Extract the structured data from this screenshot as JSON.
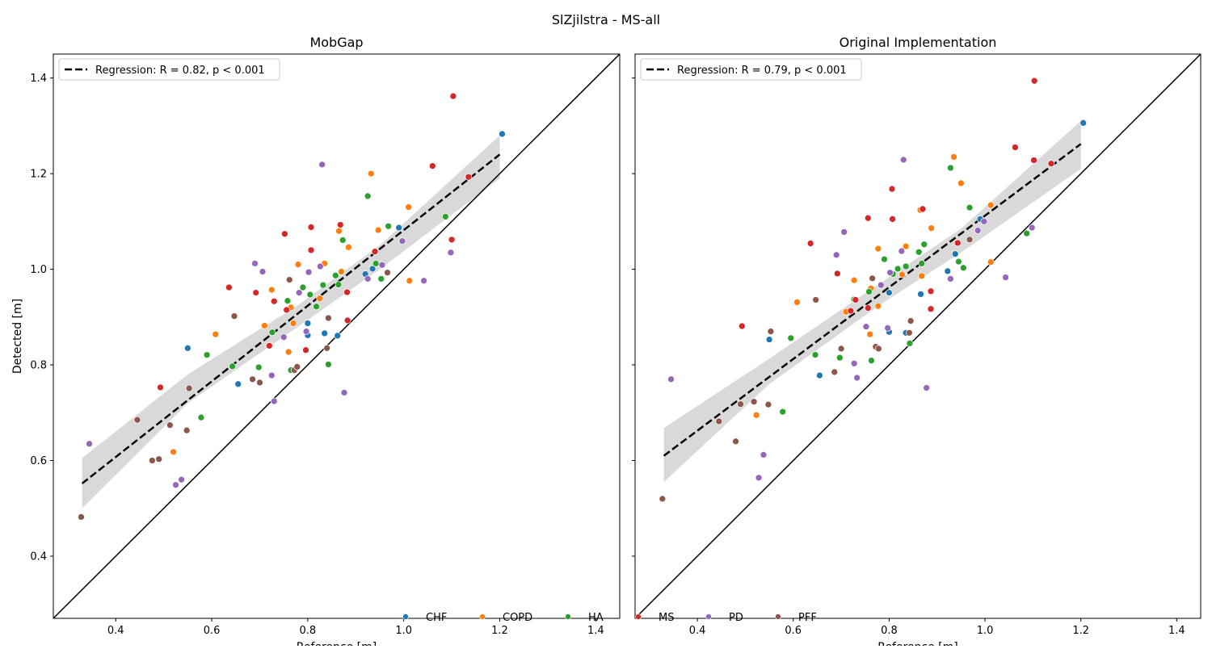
{
  "figure": {
    "title": "SlZjilstra - MS-all"
  },
  "colors": {
    "CHF": "#1f77b4",
    "COPD": "#ff7f0e",
    "HA": "#2ca02c",
    "MS": "#d62728",
    "PD": "#9467bd",
    "PFF": "#8c564b",
    "regression": "#000000",
    "ci_band": "#d9d9d9",
    "identity": "#000000"
  },
  "legend_bottom": {
    "entries": [
      {
        "label": "CHF",
        "group": "CHF"
      },
      {
        "label": "COPD",
        "group": "COPD"
      },
      {
        "label": "HA",
        "group": "HA"
      },
      {
        "label": "MS",
        "group": "MS"
      },
      {
        "label": "PD",
        "group": "PD"
      },
      {
        "label": "PFF",
        "group": "PFF"
      }
    ]
  },
  "chart_data": [
    {
      "type": "scatter",
      "title": "MobGap",
      "xlabel": "Reference [m]",
      "ylabel": "Detected [m]",
      "xlim": [
        0.27,
        1.45
      ],
      "ylim": [
        0.27,
        1.45
      ],
      "xticks": [
        0.4,
        0.6,
        0.8,
        1.0,
        1.2,
        1.4
      ],
      "xtick_labels": [
        "0.4",
        "0.6",
        "0.8",
        "1.0",
        "1.2",
        "1.4"
      ],
      "yticks": [
        0.4,
        0.6,
        0.8,
        1.0,
        1.2,
        1.4
      ],
      "ytick_labels": [
        "0.4",
        "0.6",
        "0.8",
        "1.0",
        "1.2",
        "1.4"
      ],
      "legend": "top-left",
      "regression_label": "Regression: R = 0.82, p < 0.001",
      "regression_line": {
        "x": [
          0.33,
          1.2
        ],
        "y": [
          0.552,
          1.24
        ]
      },
      "ci_band": {
        "x": [
          0.33,
          0.55,
          0.78,
          0.95,
          1.2
        ],
        "lower": [
          0.5,
          0.72,
          0.88,
          1.0,
          1.19
        ],
        "upper": [
          0.605,
          0.78,
          0.925,
          1.05,
          1.28
        ]
      },
      "identity_line": true,
      "series": [
        {
          "name": "CHF",
          "points": [
            [
              0.55,
              0.835
            ],
            [
              0.655,
              0.76
            ],
            [
              0.8,
              0.887
            ],
            [
              0.8,
              0.862
            ],
            [
              0.835,
              0.866
            ],
            [
              0.862,
              0.861
            ],
            [
              0.92,
              0.99
            ],
            [
              0.935,
              1.001
            ],
            [
              0.99,
              1.087
            ],
            [
              1.205,
              1.283
            ]
          ]
        },
        {
          "name": "COPD",
          "points": [
            [
              0.52,
              0.618
            ],
            [
              0.608,
              0.864
            ],
            [
              0.71,
              0.882
            ],
            [
              0.725,
              0.957
            ],
            [
              0.76,
              0.827
            ],
            [
              0.765,
              0.92
            ],
            [
              0.77,
              0.887
            ],
            [
              0.78,
              1.01
            ],
            [
              0.825,
              0.939
            ],
            [
              0.835,
              1.012
            ],
            [
              0.865,
              1.08
            ],
            [
              0.87,
              0.995
            ],
            [
              0.885,
              1.046
            ],
            [
              0.932,
              1.2
            ],
            [
              0.947,
              1.082
            ],
            [
              1.01,
              1.13
            ],
            [
              1.012,
              0.976
            ]
          ]
        },
        {
          "name": "HA",
          "points": [
            [
              0.578,
              0.69
            ],
            [
              0.59,
              0.821
            ],
            [
              0.643,
              0.797
            ],
            [
              0.698,
              0.795
            ],
            [
              0.726,
              0.868
            ],
            [
              0.758,
              0.934
            ],
            [
              0.765,
              0.789
            ],
            [
              0.79,
              0.962
            ],
            [
              0.805,
              0.947
            ],
            [
              0.818,
              0.922
            ],
            [
              0.832,
              0.967
            ],
            [
              0.843,
              0.801
            ],
            [
              0.858,
              0.987
            ],
            [
              0.864,
              0.968
            ],
            [
              0.873,
              1.061
            ],
            [
              0.925,
              1.153
            ],
            [
              0.942,
              1.012
            ],
            [
              0.953,
              0.98
            ],
            [
              0.968,
              1.09
            ],
            [
              1.087,
              1.11
            ]
          ]
        },
        {
          "name": "MS",
          "points": [
            [
              0.493,
              0.753
            ],
            [
              0.636,
              0.962
            ],
            [
              0.692,
              0.951
            ],
            [
              0.72,
              0.84
            ],
            [
              0.73,
              0.933
            ],
            [
              0.752,
              1.074
            ],
            [
              0.756,
              0.915
            ],
            [
              0.796,
              0.831
            ],
            [
              0.807,
              1.088
            ],
            [
              0.807,
              1.04
            ],
            [
              0.868,
              1.093
            ],
            [
              0.882,
              0.952
            ],
            [
              0.883,
              0.893
            ],
            [
              0.94,
              1.037
            ],
            [
              1.06,
              1.216
            ],
            [
              1.1,
              1.062
            ],
            [
              1.103,
              1.362
            ],
            [
              1.135,
              1.193
            ]
          ]
        },
        {
          "name": "PD",
          "points": [
            [
              0.345,
              0.635
            ],
            [
              0.525,
              0.549
            ],
            [
              0.537,
              0.56
            ],
            [
              0.69,
              1.012
            ],
            [
              0.706,
              0.995
            ],
            [
              0.725,
              0.778
            ],
            [
              0.73,
              0.724
            ],
            [
              0.75,
              0.858
            ],
            [
              0.782,
              0.951
            ],
            [
              0.797,
              0.87
            ],
            [
              0.802,
              0.994
            ],
            [
              0.826,
              1.006
            ],
            [
              0.83,
              1.219
            ],
            [
              0.876,
              0.742
            ],
            [
              0.925,
              0.98
            ],
            [
              0.955,
              1.009
            ],
            [
              0.997,
              1.059
            ],
            [
              1.042,
              0.976
            ],
            [
              1.098,
              1.035
            ]
          ]
        },
        {
          "name": "PFF",
          "points": [
            [
              0.328,
              0.482
            ],
            [
              0.445,
              0.685
            ],
            [
              0.476,
              0.6
            ],
            [
              0.49,
              0.603
            ],
            [
              0.513,
              0.674
            ],
            [
              0.548,
              0.663
            ],
            [
              0.553,
              0.751
            ],
            [
              0.647,
              0.902
            ],
            [
              0.685,
              0.77
            ],
            [
              0.7,
              0.763
            ],
            [
              0.762,
              0.978
            ],
            [
              0.772,
              0.789
            ],
            [
              0.778,
              0.796
            ],
            [
              0.84,
              0.835
            ],
            [
              0.843,
              0.898
            ],
            [
              0.966,
              0.993
            ]
          ]
        }
      ]
    },
    {
      "type": "scatter",
      "title": "Original Implementation",
      "xlabel": "Reference [m]",
      "ylabel": "",
      "xlim": [
        0.27,
        1.45
      ],
      "ylim": [
        0.27,
        1.45
      ],
      "xticks": [
        0.4,
        0.6,
        0.8,
        1.0,
        1.2,
        1.4
      ],
      "xtick_labels": [
        "0.4",
        "0.6",
        "0.8",
        "1.0",
        "1.2",
        "1.4"
      ],
      "yticks": [],
      "ytick_labels": [],
      "legend": "top-left",
      "regression_label": "Regression: R = 0.79, p < 0.001",
      "regression_line": {
        "x": [
          0.33,
          1.2
        ],
        "y": [
          0.61,
          1.262
        ]
      },
      "ci_band": {
        "x": [
          0.33,
          0.55,
          0.78,
          0.95,
          1.2
        ],
        "lower": [
          0.555,
          0.76,
          0.925,
          1.035,
          1.21
        ],
        "upper": [
          0.668,
          0.813,
          0.97,
          1.085,
          1.31
        ]
      },
      "identity_line": true,
      "series": [
        {
          "name": "CHF",
          "points": [
            [
              0.55,
              0.853
            ],
            [
              0.655,
              0.778
            ],
            [
              0.8,
              0.869
            ],
            [
              0.8,
              0.951
            ],
            [
              0.835,
              0.867
            ],
            [
              0.866,
              0.948
            ],
            [
              0.922,
              0.996
            ],
            [
              0.938,
              1.032
            ],
            [
              0.99,
              1.105
            ],
            [
              1.205,
              1.306
            ]
          ]
        },
        {
          "name": "COPD",
          "points": [
            [
              0.523,
              0.695
            ],
            [
              0.608,
              0.931
            ],
            [
              0.71,
              0.911
            ],
            [
              0.727,
              0.977
            ],
            [
              0.76,
              0.864
            ],
            [
              0.762,
              0.96
            ],
            [
              0.777,
              0.923
            ],
            [
              0.777,
              1.043
            ],
            [
              0.827,
              0.989
            ],
            [
              0.835,
              1.048
            ],
            [
              0.865,
              1.124
            ],
            [
              0.868,
              0.986
            ],
            [
              0.888,
              1.086
            ],
            [
              0.935,
              1.235
            ],
            [
              0.95,
              1.18
            ],
            [
              1.012,
              1.015
            ],
            [
              1.012,
              1.134
            ]
          ]
        },
        {
          "name": "HA",
          "points": [
            [
              0.578,
              0.702
            ],
            [
              0.595,
              0.856
            ],
            [
              0.646,
              0.821
            ],
            [
              0.697,
              0.815
            ],
            [
              0.727,
              0.937
            ],
            [
              0.758,
              0.953
            ],
            [
              0.763,
              0.809
            ],
            [
              0.79,
              1.021
            ],
            [
              0.808,
              0.99
            ],
            [
              0.818,
              1.001
            ],
            [
              0.835,
              1.006
            ],
            [
              0.843,
              0.845
            ],
            [
              0.862,
              1.036
            ],
            [
              0.868,
              1.012
            ],
            [
              0.873,
              1.052
            ],
            [
              0.928,
              1.212
            ],
            [
              0.945,
              1.016
            ],
            [
              0.955,
              1.003
            ],
            [
              0.968,
              1.129
            ],
            [
              1.087,
              1.075
            ]
          ]
        },
        {
          "name": "MS",
          "points": [
            [
              0.493,
              0.881
            ],
            [
              0.636,
              1.054
            ],
            [
              0.692,
              0.991
            ],
            [
              0.72,
              0.913
            ],
            [
              0.73,
              0.936
            ],
            [
              0.756,
              1.107
            ],
            [
              0.756,
              0.919
            ],
            [
              0.806,
              1.168
            ],
            [
              0.807,
              1.105
            ],
            [
              0.87,
              1.126
            ],
            [
              0.887,
              0.954
            ],
            [
              0.887,
              0.917
            ],
            [
              0.943,
              1.055
            ],
            [
              1.063,
              1.255
            ],
            [
              1.102,
              1.228
            ],
            [
              1.103,
              1.394
            ],
            [
              1.138,
              1.221
            ]
          ]
        },
        {
          "name": "PD",
          "points": [
            [
              0.345,
              0.77
            ],
            [
              0.528,
              0.564
            ],
            [
              0.538,
              0.612
            ],
            [
              0.69,
              1.03
            ],
            [
              0.706,
              1.078
            ],
            [
              0.727,
              0.803
            ],
            [
              0.733,
              0.773
            ],
            [
              0.752,
              0.88
            ],
            [
              0.783,
              0.967
            ],
            [
              0.797,
              0.877
            ],
            [
              0.802,
              0.993
            ],
            [
              0.826,
              1.038
            ],
            [
              0.83,
              1.229
            ],
            [
              0.878,
              0.752
            ],
            [
              0.928,
              0.98
            ],
            [
              0.985,
              1.081
            ],
            [
              0.998,
              1.1
            ],
            [
              1.043,
              0.983
            ],
            [
              1.098,
              1.087
            ]
          ]
        },
        {
          "name": "PFF",
          "points": [
            [
              0.327,
              0.52
            ],
            [
              0.445,
              0.682
            ],
            [
              0.48,
              0.64
            ],
            [
              0.49,
              0.718
            ],
            [
              0.518,
              0.723
            ],
            [
              0.548,
              0.717
            ],
            [
              0.553,
              0.87
            ],
            [
              0.647,
              0.936
            ],
            [
              0.686,
              0.785
            ],
            [
              0.7,
              0.834
            ],
            [
              0.765,
              0.981
            ],
            [
              0.772,
              0.838
            ],
            [
              0.778,
              0.834
            ],
            [
              0.842,
              0.867
            ],
            [
              0.845,
              0.892
            ],
            [
              0.968,
              1.062
            ]
          ]
        }
      ]
    }
  ]
}
